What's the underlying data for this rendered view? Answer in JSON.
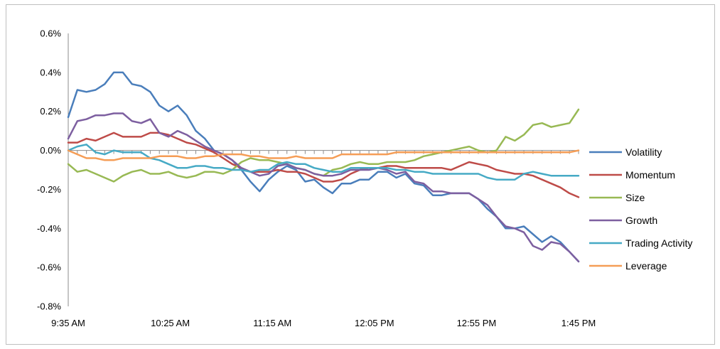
{
  "chart_data": {
    "type": "line",
    "title": "",
    "xlabel": "",
    "ylabel": "",
    "x_tick_labels": [
      "9:35 AM",
      "10:25 AM",
      "11:15 AM",
      "12:05 PM",
      "12:55 PM",
      "1:45 PM"
    ],
    "y_tick_labels": [
      "0.6%",
      "0.4%",
      "0.2%",
      "0.0%",
      "-0.2%",
      "-0.4%",
      "-0.6%",
      "-0.8%"
    ],
    "ylim": [
      -0.8,
      0.6
    ],
    "y_unit": "%",
    "grid": false,
    "legend_position": "right",
    "series": [
      {
        "name": "Volatility",
        "color": "#4a7ebb",
        "values": [
          0.17,
          0.31,
          0.3,
          0.31,
          0.34,
          0.4,
          0.4,
          0.34,
          0.33,
          0.3,
          0.23,
          0.2,
          0.23,
          0.18,
          0.1,
          0.06,
          0.0,
          -0.02,
          -0.05,
          -0.1,
          -0.16,
          -0.21,
          -0.15,
          -0.11,
          -0.08,
          -0.1,
          -0.16,
          -0.15,
          -0.19,
          -0.22,
          -0.17,
          -0.17,
          -0.15,
          -0.15,
          -0.11,
          -0.11,
          -0.14,
          -0.12,
          -0.17,
          -0.18,
          -0.23,
          -0.23,
          -0.22,
          -0.22,
          -0.22,
          -0.25,
          -0.3,
          -0.34,
          -0.4,
          -0.4,
          -0.39,
          -0.43,
          -0.47,
          -0.44,
          -0.47,
          -0.52,
          -0.57
        ]
      },
      {
        "name": "Momentum",
        "color": "#be4b48",
        "values": [
          0.04,
          0.04,
          0.06,
          0.05,
          0.07,
          0.09,
          0.07,
          0.07,
          0.07,
          0.09,
          0.09,
          0.08,
          0.06,
          0.04,
          0.03,
          0.01,
          -0.01,
          -0.04,
          -0.07,
          -0.09,
          -0.11,
          -0.11,
          -0.11,
          -0.1,
          -0.11,
          -0.11,
          -0.12,
          -0.14,
          -0.16,
          -0.16,
          -0.15,
          -0.12,
          -0.1,
          -0.09,
          -0.09,
          -0.08,
          -0.08,
          -0.09,
          -0.09,
          -0.09,
          -0.09,
          -0.09,
          -0.1,
          -0.08,
          -0.06,
          -0.07,
          -0.08,
          -0.1,
          -0.11,
          -0.12,
          -0.12,
          -0.13,
          -0.15,
          -0.17,
          -0.19,
          -0.22,
          -0.24
        ]
      },
      {
        "name": "Size",
        "color": "#98b954",
        "values": [
          -0.07,
          -0.11,
          -0.1,
          -0.12,
          -0.14,
          -0.16,
          -0.13,
          -0.11,
          -0.1,
          -0.12,
          -0.12,
          -0.11,
          -0.13,
          -0.14,
          -0.13,
          -0.11,
          -0.11,
          -0.12,
          -0.1,
          -0.06,
          -0.04,
          -0.05,
          -0.05,
          -0.06,
          -0.07,
          -0.09,
          -0.1,
          -0.12,
          -0.13,
          -0.1,
          -0.09,
          -0.07,
          -0.06,
          -0.07,
          -0.07,
          -0.06,
          -0.06,
          -0.06,
          -0.05,
          -0.03,
          -0.02,
          -0.01,
          0.0,
          0.01,
          0.02,
          0.0,
          -0.01,
          0.0,
          0.07,
          0.05,
          0.08,
          0.13,
          0.14,
          0.12,
          0.13,
          0.14,
          0.21
        ]
      },
      {
        "name": "Growth",
        "color": "#7d5fa0",
        "values": [
          0.06,
          0.15,
          0.16,
          0.18,
          0.18,
          0.19,
          0.19,
          0.15,
          0.14,
          0.16,
          0.09,
          0.07,
          0.1,
          0.08,
          0.05,
          0.02,
          0.0,
          -0.02,
          -0.05,
          -0.09,
          -0.11,
          -0.13,
          -0.12,
          -0.08,
          -0.07,
          -0.09,
          -0.1,
          -0.12,
          -0.13,
          -0.13,
          -0.12,
          -0.1,
          -0.1,
          -0.1,
          -0.09,
          -0.1,
          -0.12,
          -0.11,
          -0.16,
          -0.17,
          -0.21,
          -0.21,
          -0.22,
          -0.22,
          -0.22,
          -0.25,
          -0.28,
          -0.34,
          -0.39,
          -0.4,
          -0.42,
          -0.49,
          -0.51,
          -0.47,
          -0.48,
          -0.52,
          -0.57
        ]
      },
      {
        "name": "Trading Activity",
        "color": "#46aac5",
        "values": [
          0.0,
          0.02,
          0.03,
          -0.01,
          -0.02,
          0.0,
          -0.01,
          -0.01,
          -0.01,
          -0.04,
          -0.05,
          -0.07,
          -0.09,
          -0.09,
          -0.08,
          -0.08,
          -0.09,
          -0.09,
          -0.1,
          -0.1,
          -0.11,
          -0.1,
          -0.1,
          -0.07,
          -0.06,
          -0.07,
          -0.07,
          -0.09,
          -0.1,
          -0.11,
          -0.11,
          -0.09,
          -0.09,
          -0.09,
          -0.09,
          -0.09,
          -0.1,
          -0.1,
          -0.11,
          -0.11,
          -0.12,
          -0.12,
          -0.12,
          -0.12,
          -0.12,
          -0.12,
          -0.14,
          -0.15,
          -0.15,
          -0.15,
          -0.12,
          -0.11,
          -0.12,
          -0.13,
          -0.13,
          -0.13,
          -0.13
        ]
      },
      {
        "name": "Leverage",
        "color": "#f59d56",
        "values": [
          0.0,
          -0.02,
          -0.04,
          -0.04,
          -0.05,
          -0.05,
          -0.04,
          -0.04,
          -0.04,
          -0.04,
          -0.03,
          -0.03,
          -0.03,
          -0.04,
          -0.04,
          -0.03,
          -0.03,
          -0.02,
          -0.02,
          -0.02,
          -0.03,
          -0.03,
          -0.04,
          -0.04,
          -0.04,
          -0.03,
          -0.04,
          -0.04,
          -0.04,
          -0.04,
          -0.02,
          -0.02,
          -0.02,
          -0.02,
          -0.02,
          -0.02,
          -0.01,
          -0.01,
          -0.01,
          -0.01,
          -0.01,
          -0.01,
          -0.01,
          -0.01,
          -0.01,
          -0.01,
          -0.01,
          -0.01,
          -0.01,
          -0.01,
          -0.01,
          -0.01,
          -0.01,
          -0.01,
          -0.01,
          -0.01,
          0.0
        ]
      }
    ]
  }
}
